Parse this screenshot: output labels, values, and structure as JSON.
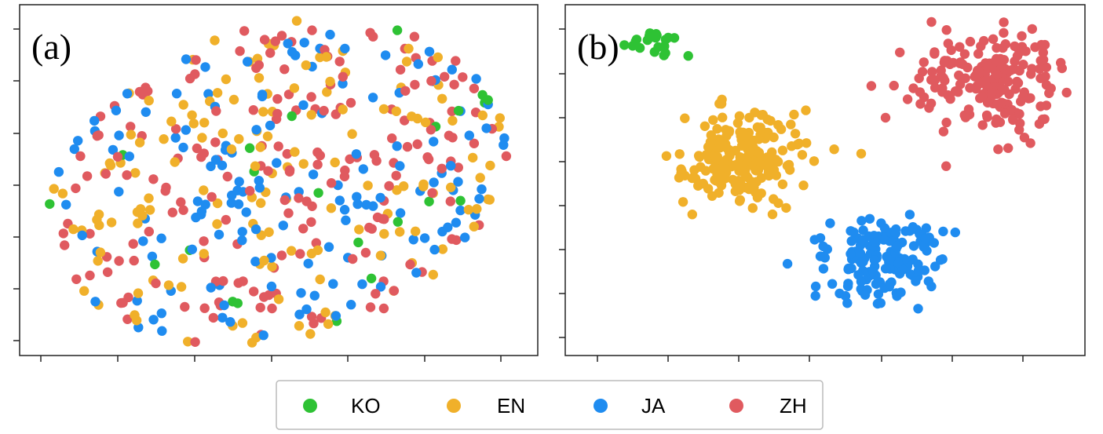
{
  "chart_data": [
    {
      "type": "scatter",
      "panel_label": "(a)",
      "title": "",
      "xlabel": "",
      "ylabel": "",
      "tick_labels_visible": false,
      "x_ticks": 7,
      "y_ticks": 8,
      "description_key": "mixed",
      "series": [
        {
          "name": "KO",
          "color": "#2ec234",
          "count": 22
        },
        {
          "name": "EN",
          "color": "#f0b02a",
          "count": 150
        },
        {
          "name": "JA",
          "color": "#1f8cf0",
          "count": 150
        },
        {
          "name": "ZH",
          "color": "#e05a5f",
          "count": 190
        }
      ]
    },
    {
      "type": "scatter",
      "panel_label": "(b)",
      "title": "",
      "xlabel": "",
      "ylabel": "",
      "tick_labels_visible": false,
      "x_ticks": 7,
      "y_ticks": 8,
      "description_key": "clustered",
      "series": [
        {
          "name": "KO",
          "color": "#2ec234",
          "count": 22,
          "cluster_center": [
            0.17,
            0.08
          ],
          "spread": [
            0.05,
            0.05
          ]
        },
        {
          "name": "EN",
          "color": "#f0b02a",
          "count": 190,
          "cluster_center": [
            0.34,
            0.5
          ],
          "spread": [
            0.11,
            0.14
          ]
        },
        {
          "name": "JA",
          "color": "#1f8cf0",
          "count": 150,
          "cluster_center": [
            0.61,
            0.93
          ],
          "spread": [
            0.11,
            0.12
          ]
        },
        {
          "name": "ZH",
          "color": "#e05a5f",
          "count": 200,
          "cluster_center": [
            0.82,
            0.22
          ],
          "spread": [
            0.12,
            0.16
          ]
        }
      ]
    }
  ],
  "legend": {
    "position": "bottom-center",
    "entries": [
      {
        "label": "KO",
        "color": "#2ec234"
      },
      {
        "label": "EN",
        "color": "#f0b02a"
      },
      {
        "label": "JA",
        "color": "#1f8cf0"
      },
      {
        "label": "ZH",
        "color": "#e05a5f"
      }
    ]
  }
}
